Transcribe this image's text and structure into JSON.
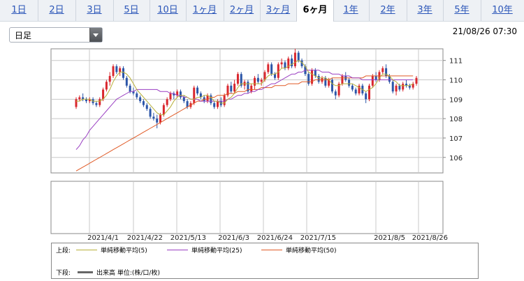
{
  "tabs": [
    {
      "label": "1日",
      "active": false
    },
    {
      "label": "2日",
      "active": false
    },
    {
      "label": "3日",
      "active": false
    },
    {
      "label": "5日",
      "active": false
    },
    {
      "label": "10日",
      "active": false
    },
    {
      "label": "1ヶ月",
      "active": false
    },
    {
      "label": "2ヶ月",
      "active": false
    },
    {
      "label": "3ヶ月",
      "active": false
    },
    {
      "label": "6ヶ月",
      "active": true
    },
    {
      "label": "1年",
      "active": false
    },
    {
      "label": "2年",
      "active": false
    },
    {
      "label": "3年",
      "active": false
    },
    {
      "label": "5年",
      "active": false
    },
    {
      "label": "10年",
      "active": false
    }
  ],
  "period_select": {
    "value": "日足"
  },
  "timestamp": "21/08/26 07:30",
  "colors": {
    "up": "#d9272e",
    "down": "#2c56a8",
    "ma5": "#b8b03a",
    "ma25": "#9a3fc2",
    "ma50": "#e05a26"
  },
  "legend": {
    "upper_label": "上段:",
    "lower_label": "下段:",
    "items": [
      {
        "label": "単純移動平均(5)",
        "color": "#b8b03a"
      },
      {
        "label": "単純移動平均(25)",
        "color": "#9a3fc2"
      },
      {
        "label": "単純移動平均(50)",
        "color": "#e05a26"
      }
    ],
    "volume_label": "出来高 単位:(株/口/枚)",
    "volume_color": "#666666"
  },
  "chart_data": {
    "type": "candlestick",
    "x_tick_labels": [
      "2021/4/1",
      "2021/4/22",
      "2021/5/13",
      "2021/6/3",
      "2021/6/24",
      "2021/7/15",
      "2021/8/5",
      "2021/8/26"
    ],
    "y_tick_labels": [
      "106",
      "107",
      "108",
      "109",
      "110",
      "111"
    ],
    "ylim": [
      105.2,
      111.6
    ],
    "grid": true,
    "ohlc": [
      [
        108.6,
        109.1,
        108.5,
        109.0
      ],
      [
        109.0,
        109.2,
        108.9,
        109.1
      ],
      [
        109.1,
        109.3,
        108.9,
        109.0
      ],
      [
        109.0,
        109.1,
        108.8,
        108.9
      ],
      [
        108.9,
        109.1,
        108.8,
        109.0
      ],
      [
        109.0,
        109.1,
        108.7,
        108.8
      ],
      [
        108.8,
        108.9,
        108.6,
        108.7
      ],
      [
        108.7,
        109.1,
        108.6,
        109.0
      ],
      [
        109.0,
        109.6,
        108.9,
        109.5
      ],
      [
        109.5,
        110.0,
        109.4,
        109.9
      ],
      [
        109.9,
        110.4,
        109.7,
        110.2
      ],
      [
        110.2,
        110.8,
        110.1,
        110.7
      ],
      [
        110.7,
        110.8,
        110.3,
        110.4
      ],
      [
        110.4,
        110.7,
        110.2,
        110.6
      ],
      [
        110.6,
        110.7,
        110.0,
        110.1
      ],
      [
        110.1,
        110.2,
        109.6,
        109.7
      ],
      [
        109.7,
        109.8,
        109.3,
        109.4
      ],
      [
        109.4,
        109.6,
        109.2,
        109.3
      ],
      [
        109.3,
        109.4,
        109.0,
        109.1
      ],
      [
        109.1,
        109.2,
        108.8,
        108.9
      ],
      [
        108.9,
        109.0,
        108.6,
        108.7
      ],
      [
        108.7,
        108.8,
        108.4,
        108.5
      ],
      [
        108.5,
        108.6,
        108.0,
        108.1
      ],
      [
        108.1,
        108.3,
        107.9,
        108.0
      ],
      [
        108.0,
        108.2,
        107.5,
        107.8
      ],
      [
        107.8,
        108.3,
        107.7,
        108.2
      ],
      [
        108.2,
        108.8,
        108.1,
        108.7
      ],
      [
        108.7,
        109.1,
        108.6,
        109.0
      ],
      [
        109.0,
        109.4,
        108.9,
        109.3
      ],
      [
        109.3,
        109.4,
        109.0,
        109.2
      ],
      [
        109.2,
        109.5,
        109.1,
        109.4
      ],
      [
        109.4,
        109.5,
        109.0,
        109.1
      ],
      [
        109.1,
        109.2,
        108.8,
        108.9
      ],
      [
        108.9,
        109.0,
        108.5,
        108.6
      ],
      [
        108.6,
        108.9,
        108.5,
        108.8
      ],
      [
        108.8,
        109.7,
        108.7,
        109.6
      ],
      [
        109.6,
        109.7,
        109.2,
        109.3
      ],
      [
        109.3,
        109.4,
        109.0,
        109.1
      ],
      [
        109.1,
        109.2,
        108.8,
        108.9
      ],
      [
        108.9,
        109.3,
        108.8,
        109.2
      ],
      [
        109.2,
        109.3,
        108.7,
        108.8
      ],
      [
        108.8,
        108.9,
        108.5,
        108.6
      ],
      [
        108.6,
        109.0,
        108.5,
        108.9
      ],
      [
        108.9,
        109.1,
        108.6,
        108.7
      ],
      [
        108.7,
        109.3,
        108.6,
        109.2
      ],
      [
        109.2,
        109.8,
        109.1,
        109.7
      ],
      [
        109.7,
        109.9,
        109.3,
        109.4
      ],
      [
        109.4,
        110.0,
        109.3,
        109.8
      ],
      [
        109.8,
        110.4,
        109.7,
        110.3
      ],
      [
        110.3,
        110.4,
        109.6,
        109.7
      ],
      [
        109.7,
        110.0,
        109.5,
        109.9
      ],
      [
        109.9,
        110.0,
        109.3,
        109.4
      ],
      [
        109.4,
        109.8,
        109.3,
        109.7
      ],
      [
        109.7,
        110.2,
        109.5,
        110.1
      ],
      [
        110.1,
        110.3,
        109.8,
        109.9
      ],
      [
        109.9,
        110.1,
        109.7,
        110.0
      ],
      [
        110.0,
        110.5,
        109.9,
        110.4
      ],
      [
        110.4,
        110.9,
        110.3,
        110.8
      ],
      [
        110.8,
        110.9,
        110.2,
        110.3
      ],
      [
        110.3,
        110.4,
        110.0,
        110.1
      ],
      [
        110.1,
        110.9,
        110.0,
        110.8
      ],
      [
        110.8,
        111.1,
        110.6,
        110.9
      ],
      [
        110.9,
        111.0,
        110.5,
        110.6
      ],
      [
        110.6,
        111.2,
        110.5,
        111.1
      ],
      [
        111.1,
        111.3,
        110.6,
        110.7
      ],
      [
        110.7,
        111.6,
        110.6,
        111.4
      ],
      [
        111.4,
        111.5,
        110.9,
        111.0
      ],
      [
        111.0,
        111.1,
        110.6,
        110.7
      ],
      [
        110.7,
        110.8,
        110.2,
        110.3
      ],
      [
        110.3,
        110.4,
        109.7,
        109.8
      ],
      [
        109.8,
        110.6,
        109.7,
        110.5
      ],
      [
        110.5,
        110.6,
        110.1,
        110.2
      ],
      [
        110.2,
        110.3,
        109.8,
        109.9
      ],
      [
        109.9,
        110.2,
        109.8,
        110.1
      ],
      [
        110.1,
        110.2,
        109.6,
        109.7
      ],
      [
        109.7,
        110.1,
        109.6,
        110.0
      ],
      [
        110.0,
        110.1,
        109.3,
        109.4
      ],
      [
        109.4,
        109.5,
        109.0,
        109.2
      ],
      [
        109.2,
        109.9,
        109.1,
        109.8
      ],
      [
        109.8,
        110.3,
        109.7,
        110.2
      ],
      [
        110.2,
        110.4,
        109.9,
        110.0
      ],
      [
        110.0,
        110.1,
        109.6,
        109.7
      ],
      [
        109.7,
        109.8,
        109.4,
        109.5
      ],
      [
        109.5,
        109.6,
        109.2,
        109.3
      ],
      [
        109.3,
        109.8,
        109.2,
        109.7
      ],
      [
        109.7,
        109.8,
        109.2,
        109.3
      ],
      [
        109.3,
        109.4,
        108.8,
        109.0
      ],
      [
        109.0,
        109.8,
        108.9,
        109.7
      ],
      [
        109.7,
        110.3,
        109.6,
        110.2
      ],
      [
        110.2,
        110.4,
        109.9,
        110.0
      ],
      [
        110.0,
        110.5,
        109.9,
        110.4
      ],
      [
        110.4,
        110.7,
        110.3,
        110.6
      ],
      [
        110.6,
        110.8,
        110.1,
        110.2
      ],
      [
        110.2,
        110.3,
        109.8,
        109.9
      ],
      [
        109.9,
        110.0,
        109.3,
        109.4
      ],
      [
        109.4,
        109.8,
        109.2,
        109.7
      ],
      [
        109.7,
        109.8,
        109.4,
        109.5
      ],
      [
        109.5,
        109.9,
        109.4,
        109.8
      ],
      [
        109.8,
        110.0,
        109.6,
        109.7
      ],
      [
        109.7,
        109.8,
        109.5,
        109.6
      ],
      [
        109.6,
        109.9,
        109.5,
        109.8
      ],
      [
        109.8,
        110.2,
        109.7,
        110.1
      ]
    ],
    "ma5": [
      108.9,
      108.9,
      109.0,
      109.0,
      109.0,
      108.9,
      108.9,
      108.9,
      109.0,
      109.2,
      109.5,
      109.9,
      110.2,
      110.4,
      110.4,
      110.3,
      110.1,
      109.8,
      109.5,
      109.3,
      109.1,
      108.9,
      108.7,
      108.5,
      108.3,
      108.2,
      108.2,
      108.4,
      108.6,
      108.9,
      109.1,
      109.2,
      109.2,
      109.1,
      109.0,
      109.0,
      109.1,
      109.1,
      109.2,
      109.2,
      109.1,
      108.9,
      108.9,
      108.8,
      108.8,
      109.0,
      109.1,
      109.3,
      109.6,
      109.8,
      109.8,
      109.8,
      109.8,
      109.8,
      109.8,
      109.8,
      110.0,
      110.2,
      110.3,
      110.3,
      110.4,
      110.6,
      110.6,
      110.7,
      110.8,
      110.9,
      111.0,
      110.9,
      110.7,
      110.4,
      110.3,
      110.2,
      110.1,
      110.1,
      110.1,
      110.0,
      109.8,
      109.7,
      109.7,
      109.8,
      109.8,
      109.8,
      109.8,
      109.7,
      109.6,
      109.5,
      109.4,
      109.5,
      109.6,
      109.8,
      110.1,
      110.3,
      110.3,
      110.2,
      110.0,
      109.9,
      109.7,
      109.7,
      109.7,
      109.7,
      109.8
    ],
    "ma25": [
      106.4,
      106.6,
      106.9,
      107.1,
      107.4,
      107.6,
      107.8,
      108.0,
      108.2,
      108.4,
      108.6,
      108.8,
      109.0,
      109.1,
      109.2,
      109.3,
      109.4,
      109.4,
      109.5,
      109.5,
      109.5,
      109.5,
      109.5,
      109.5,
      109.5,
      109.4,
      109.4,
      109.4,
      109.3,
      109.3,
      109.2,
      109.2,
      109.1,
      109.1,
      109.0,
      109.0,
      109.0,
      108.9,
      108.9,
      108.9,
      108.9,
      108.9,
      108.9,
      108.9,
      108.9,
      109.0,
      109.0,
      109.1,
      109.2,
      109.2,
      109.3,
      109.3,
      109.4,
      109.4,
      109.5,
      109.5,
      109.6,
      109.7,
      109.8,
      109.8,
      109.9,
      110.0,
      110.1,
      110.2,
      110.3,
      110.3,
      110.4,
      110.4,
      110.5,
      110.5,
      110.5,
      110.5,
      110.5,
      110.4,
      110.4,
      110.4,
      110.3,
      110.3,
      110.3,
      110.2,
      110.2,
      110.2,
      110.1,
      110.1,
      110.1,
      110.0,
      110.0,
      110.0,
      110.0,
      110.0,
      110.0,
      110.0,
      110.0,
      110.0,
      110.0,
      110.0,
      110.0,
      110.0,
      110.0,
      110.0,
      110.0
    ],
    "ma50": [
      105.3,
      105.4,
      105.5,
      105.6,
      105.7,
      105.8,
      105.9,
      106.0,
      106.1,
      106.2,
      106.3,
      106.4,
      106.5,
      106.6,
      106.7,
      106.8,
      106.9,
      107.0,
      107.1,
      107.2,
      107.3,
      107.4,
      107.5,
      107.6,
      107.7,
      107.8,
      107.9,
      108.0,
      108.1,
      108.2,
      108.3,
      108.4,
      108.5,
      108.6,
      108.7,
      108.8,
      108.9,
      108.9,
      109.0,
      109.0,
      109.1,
      109.1,
      109.2,
      109.2,
      109.2,
      109.3,
      109.3,
      109.3,
      109.4,
      109.4,
      109.4,
      109.5,
      109.5,
      109.5,
      109.5,
      109.6,
      109.6,
      109.6,
      109.6,
      109.7,
      109.7,
      109.7,
      109.7,
      109.8,
      109.8,
      109.8,
      109.8,
      109.9,
      109.9,
      109.9,
      109.9,
      110.0,
      110.0,
      110.0,
      110.0,
      110.0,
      110.1,
      110.1,
      110.1,
      110.1,
      110.1,
      110.1,
      110.1,
      110.1,
      110.1,
      110.1,
      110.2,
      110.2,
      110.2,
      110.2,
      110.2,
      110.2,
      110.2,
      110.2,
      110.2,
      110.2,
      110.2,
      110.2,
      110.2,
      110.2,
      110.2
    ]
  }
}
